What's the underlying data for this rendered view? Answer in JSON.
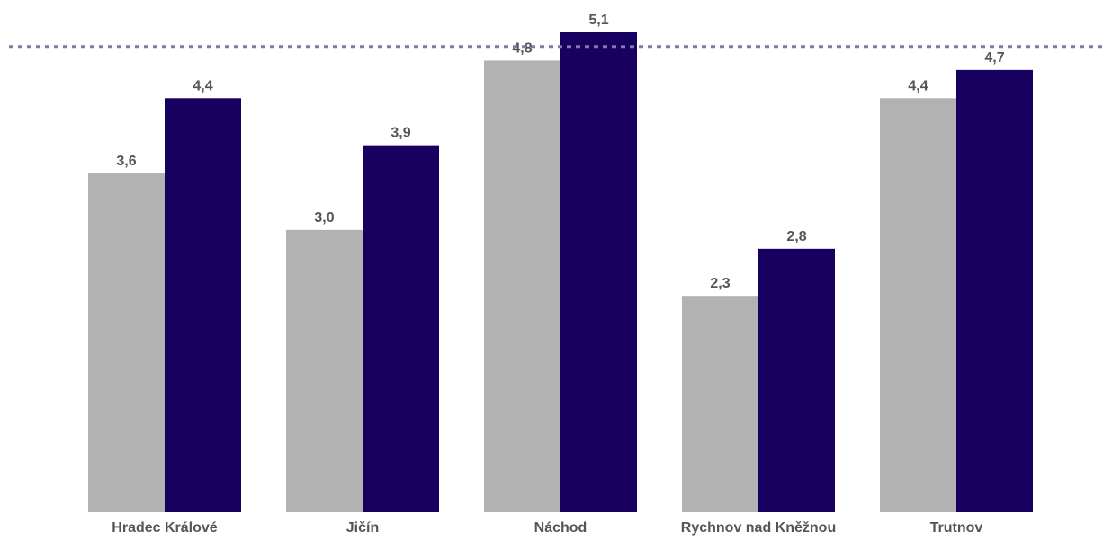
{
  "chart_data": {
    "type": "bar",
    "categories": [
      "Hradec Králové",
      "Jičín",
      "Náchod",
      "Rychnov nad Kněžnou",
      "Trutnov"
    ],
    "series": [
      {
        "values": [
          3.6,
          3.0,
          4.8,
          2.3,
          4.4
        ],
        "color": "#b2b2b2"
      },
      {
        "values": [
          4.4,
          3.9,
          5.1,
          2.8,
          4.7
        ],
        "color": "#170060"
      }
    ],
    "value_labels": [
      [
        "3,6",
        "3,0",
        "4,8",
        "2,3",
        "4,4"
      ],
      [
        "4,4",
        "3,9",
        "5,1",
        "2,8",
        "4,7"
      ]
    ],
    "reference_line": {
      "value": 4.95,
      "color": "#7b7da6",
      "style": "dashed"
    },
    "ylim": [
      0,
      5.1
    ],
    "grid": false,
    "legend": "none",
    "label_color": "#555555",
    "title": "",
    "xlabel": "",
    "ylabel": ""
  }
}
